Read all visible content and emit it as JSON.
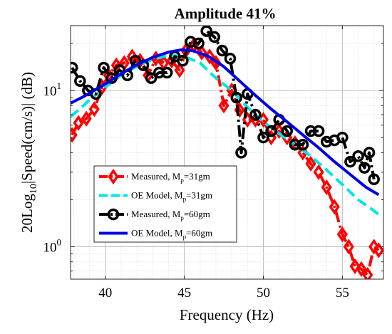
{
  "chart_data": {
    "type": "line",
    "title": "Amplitude 41%",
    "xlabel": "Frequency (Hz)",
    "ylabel": {
      "prefix": "20Log",
      "sub": "10",
      "suffix": "|Speed(cm/s)| (dB)"
    },
    "xlim": [
      37.8,
      57.6
    ],
    "ylim": [
      0.62,
      26
    ],
    "yscale": "log",
    "grid": true,
    "legend_position": "lower-left",
    "x_ticks": [
      40,
      45,
      50,
      55
    ],
    "y_ticks": [
      {
        "value": 1,
        "base": "10",
        "exp": "0"
      },
      {
        "value": 10,
        "base": "10",
        "exp": "1"
      }
    ],
    "series": [
      {
        "name": "Measured,  M=31gm",
        "label": {
          "main": "Measured,  M",
          "sub": "p",
          "rest": "=31gm"
        },
        "color": "#ff0000",
        "line_style": "dashdot",
        "marker": "diamond",
        "x": [
          37.9,
          38.3,
          38.8,
          39.3,
          39.8,
          40.2,
          40.7,
          41.2,
          41.7,
          42.2,
          42.7,
          43.2,
          43.7,
          44.2,
          44.7,
          45.1,
          45.6,
          46.1,
          46.6,
          47.0,
          47.5,
          48.0,
          48.5,
          49.0,
          49.5,
          50.0,
          50.5,
          51.0,
          51.5,
          52.0,
          52.5,
          53.0,
          53.5,
          54.0,
          54.5,
          55.0,
          55.4,
          55.8,
          56.2,
          56.6,
          57.0,
          57.3
        ],
        "y": [
          5.2,
          6.2,
          6.6,
          7.6,
          10.5,
          12.5,
          14.5,
          15.0,
          16.5,
          15.5,
          12.5,
          16.0,
          15.0,
          15.5,
          13.5,
          18.0,
          19.5,
          17.5,
          16.5,
          15.0,
          8.0,
          10.0,
          7.5,
          6.5,
          6.5,
          6.5,
          5.0,
          5.5,
          5.0,
          4.6,
          4.0,
          3.4,
          3.0,
          2.4,
          1.8,
          1.2,
          1.0,
          0.75,
          0.72,
          0.66,
          1.0,
          0.95
        ]
      },
      {
        "name": "OE Model,  M=31gm",
        "label": {
          "main": "OE Model,  M",
          "sub": "p",
          "rest": "=31gm"
        },
        "color": "#00e5e5",
        "line_style": "dashed",
        "x": [
          37.8,
          38.5,
          39.0,
          40.0,
          41.0,
          42.0,
          43.0,
          44.0,
          45.0,
          46.0,
          47.0,
          48.0,
          49.0,
          50.0,
          51.0,
          52.0,
          53.0,
          54.0,
          55.0,
          56.0,
          57.0,
          57.5
        ],
        "y": [
          6.8,
          7.8,
          8.7,
          10.5,
          12.5,
          14.3,
          15.8,
          16.8,
          16.5,
          15.0,
          12.0,
          10.0,
          7.8,
          6.3,
          5.3,
          4.5,
          3.8,
          3.1,
          2.5,
          2.0,
          1.7,
          1.55
        ]
      },
      {
        "name": "Measured,  M=60gm",
        "label": {
          "main": "Measured,  M",
          "sub": "p",
          "rest": "=60gm"
        },
        "color": "#000000",
        "line_style": "dashdot",
        "marker": "circle",
        "x": [
          37.9,
          38.4,
          38.9,
          39.4,
          39.9,
          40.4,
          40.9,
          41.4,
          41.9,
          42.4,
          42.9,
          43.4,
          43.9,
          44.4,
          44.9,
          45.4,
          45.9,
          46.4,
          46.9,
          47.4,
          47.9,
          48.3,
          48.6,
          49.0,
          49.5,
          50.0,
          50.5,
          51.0,
          51.5,
          52.0,
          52.5,
          53.0,
          53.5,
          54.0,
          54.5,
          55.0,
          55.5,
          56.0,
          56.4,
          56.7,
          57.0
        ],
        "y": [
          14.0,
          11.5,
          10.0,
          9.5,
          14.0,
          12.0,
          13.5,
          12.5,
          15.5,
          14.5,
          12.0,
          13.0,
          13.0,
          16.5,
          15.5,
          20.5,
          20.0,
          24.0,
          22.0,
          18.0,
          16.0,
          9.0,
          4.0,
          9.5,
          7.0,
          5.0,
          5.5,
          6.5,
          5.5,
          4.5,
          4.5,
          5.5,
          5.5,
          4.7,
          4.8,
          5.0,
          3.5,
          3.8,
          3.2,
          4.0,
          2.7
        ]
      },
      {
        "name": "OE Model,  M=60gm",
        "label": {
          "main": "OE Model,  M",
          "sub": "p",
          "rest": "=60gm"
        },
        "color": "#0000e6",
        "line_style": "solid",
        "x": [
          37.8,
          38.5,
          39.0,
          40.0,
          41.0,
          42.0,
          43.0,
          44.0,
          44.8,
          45.5,
          46.5,
          47.5,
          48.5,
          49.5,
          50.5,
          51.5,
          52.5,
          53.5,
          54.5,
          55.5,
          56.5,
          57.3
        ],
        "y": [
          8.3,
          9.0,
          9.6,
          11.0,
          12.8,
          14.6,
          16.3,
          17.6,
          18.2,
          18.0,
          16.6,
          14.2,
          11.5,
          9.3,
          7.6,
          6.3,
          5.2,
          4.3,
          3.5,
          2.9,
          2.4,
          2.15
        ]
      }
    ]
  }
}
